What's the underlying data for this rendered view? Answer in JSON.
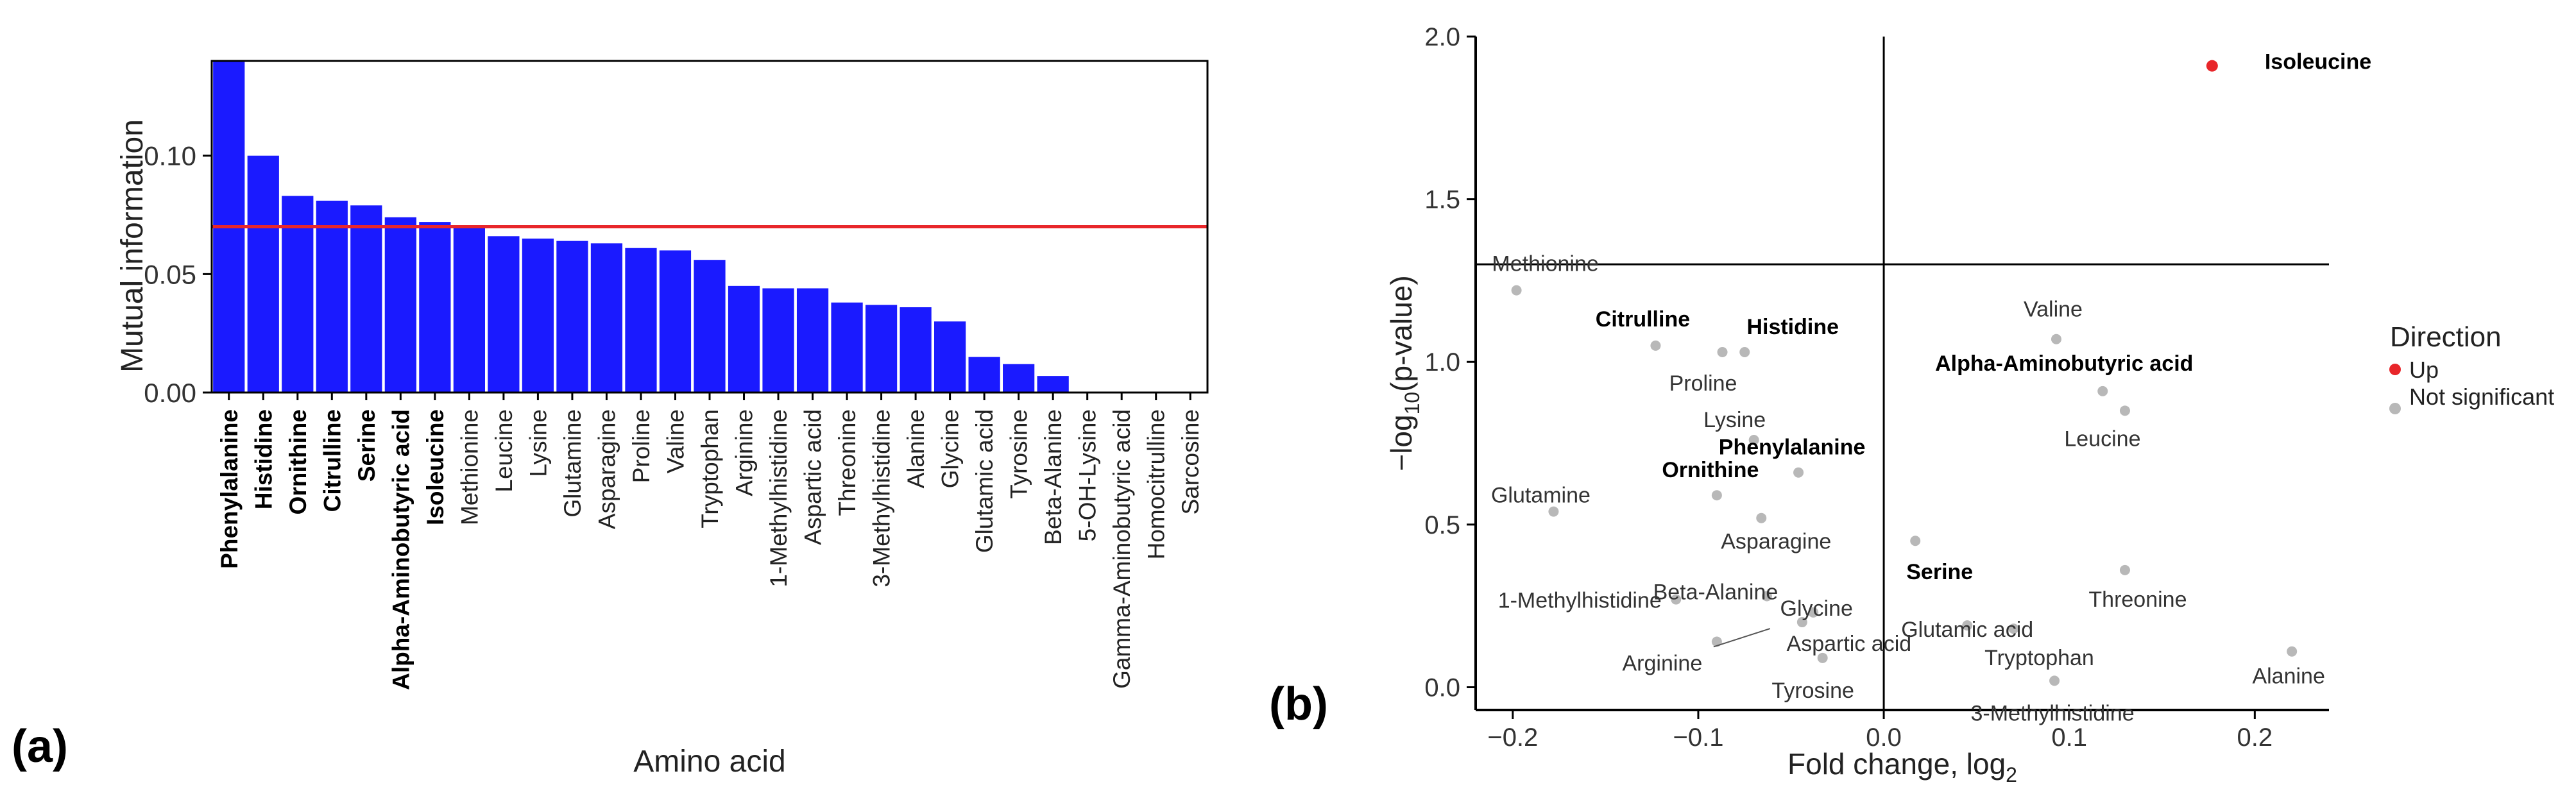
{
  "panel_a_label": "(a)",
  "panel_b_label": "(b)",
  "chart_data": [
    {
      "type": "bar",
      "xlabel": "Amino acid",
      "ylabel": "Mutual information",
      "ylim": [
        0,
        0.14
      ],
      "yticks": [
        "0.00",
        "0.05",
        "0.10"
      ],
      "threshold": 0.07,
      "threshold_color": "#e8262a",
      "bar_color": "#1a1aff",
      "categories": [
        "Phenylalanine",
        "Histidine",
        "Ornithine",
        "Citrulline",
        "Serine",
        "Alpha-Aminobutyric acid",
        "Isoleucine",
        "Methionine",
        "Leucine",
        "Lysine",
        "Glutamine",
        "Asparagine",
        "Proline",
        "Valine",
        "Tryptophan",
        "Arginine",
        "1-Methylhistidine",
        "Aspartic acid",
        "Threonine",
        "3-Methylhistidine",
        "Alanine",
        "Glycine",
        "Glutamic acid",
        "Tyrosine",
        "Beta-Alanine",
        "5-OH-Lysine",
        "Gamma-Aminobutyric acid",
        "Homocitrulline",
        "Sarcosine"
      ],
      "values": [
        0.14,
        0.1,
        0.083,
        0.081,
        0.079,
        0.074,
        0.072,
        0.07,
        0.066,
        0.065,
        0.064,
        0.063,
        0.061,
        0.06,
        0.056,
        0.045,
        0.044,
        0.044,
        0.038,
        0.037,
        0.036,
        0.03,
        0.015,
        0.012,
        0.007,
        0.0,
        0.0,
        0.0,
        0.0
      ],
      "bold": [
        true,
        true,
        true,
        true,
        true,
        true,
        true,
        false,
        false,
        false,
        false,
        false,
        false,
        false,
        false,
        false,
        false,
        false,
        false,
        false,
        false,
        false,
        false,
        false,
        false,
        false,
        false,
        false,
        false
      ]
    },
    {
      "type": "scatter",
      "xlabel": "Fold change, log",
      "xlabel_sub": "2",
      "ylabel_prefix": "−log",
      "ylabel_sub": "10",
      "ylabel_suffix": "(p-value)",
      "xlim": [
        -0.22,
        0.24
      ],
      "ylim": [
        -0.07,
        2.0
      ],
      "xticks": [
        "−0.2",
        "−0.1",
        "0.0",
        "0.1",
        "0.2"
      ],
      "yticks": [
        "0.0",
        "0.5",
        "1.0",
        "1.5",
        "2.0"
      ],
      "hline": 1.3,
      "vline": 0.0,
      "legend": {
        "title": "Direction",
        "entries": [
          {
            "label": "Up",
            "color": "#e8262a"
          },
          {
            "label": "Not significant",
            "color": "#b8b8b8"
          }
        ]
      },
      "points": [
        {
          "label": "Isoleucine",
          "x": 0.177,
          "y": 1.91,
          "dir": "up",
          "bold": true
        },
        {
          "label": "Methionine",
          "x": -0.198,
          "y": 1.22,
          "dir": "ns",
          "bold": false
        },
        {
          "label": "Citrulline",
          "x": -0.123,
          "y": 1.05,
          "dir": "ns",
          "bold": true
        },
        {
          "label": "Histidine",
          "x": -0.075,
          "y": 1.03,
          "dir": "ns",
          "bold": true
        },
        {
          "label": "Proline",
          "x": -0.087,
          "y": 1.03,
          "dir": "ns",
          "bold": false
        },
        {
          "label": "Valine",
          "x": 0.093,
          "y": 1.07,
          "dir": "ns",
          "bold": false
        },
        {
          "label": "Alpha-Aminobutyric acid",
          "x": 0.118,
          "y": 0.91,
          "dir": "ns",
          "bold": true
        },
        {
          "label": "Leucine",
          "x": 0.13,
          "y": 0.85,
          "dir": "ns",
          "bold": false
        },
        {
          "label": "Lysine",
          "x": -0.07,
          "y": 0.76,
          "dir": "ns",
          "bold": false
        },
        {
          "label": "Ornithine",
          "x": -0.09,
          "y": 0.59,
          "dir": "ns",
          "bold": true
        },
        {
          "label": "Phenylalanine",
          "x": -0.046,
          "y": 0.66,
          "dir": "ns",
          "bold": true
        },
        {
          "label": "Glutamine",
          "x": -0.178,
          "y": 0.54,
          "dir": "ns",
          "bold": false
        },
        {
          "label": "Asparagine",
          "x": -0.066,
          "y": 0.52,
          "dir": "ns",
          "bold": false
        },
        {
          "label": "Serine",
          "x": 0.017,
          "y": 0.45,
          "dir": "ns",
          "bold": true
        },
        {
          "label": "Threonine",
          "x": 0.13,
          "y": 0.36,
          "dir": "ns",
          "bold": false
        },
        {
          "label": "Beta-Alanine",
          "x": -0.063,
          "y": 0.28,
          "dir": "ns",
          "bold": false
        },
        {
          "label": "Glycine",
          "x": -0.038,
          "y": 0.23,
          "dir": "ns",
          "bold": false
        },
        {
          "label": "Glutamic acid",
          "x": 0.045,
          "y": 0.19,
          "dir": "ns",
          "bold": false
        },
        {
          "label": "Tryptophan",
          "x": 0.07,
          "y": 0.18,
          "dir": "ns",
          "bold": false
        },
        {
          "label": "1-Methylhistidine",
          "x": -0.112,
          "y": 0.27,
          "dir": "ns",
          "bold": false
        },
        {
          "label": "Aspartic acid",
          "x": -0.044,
          "y": 0.2,
          "dir": "ns",
          "bold": false
        },
        {
          "label": "Arginine",
          "x": -0.09,
          "y": 0.14,
          "dir": "ns",
          "bold": false
        },
        {
          "label": "Tyrosine",
          "x": -0.033,
          "y": 0.09,
          "dir": "ns",
          "bold": false
        },
        {
          "label": "Alanine",
          "x": 0.22,
          "y": 0.11,
          "dir": "ns",
          "bold": false
        },
        {
          "label": "3-Methylhistidine",
          "x": 0.092,
          "y": 0.02,
          "dir": "ns",
          "bold": false
        }
      ]
    }
  ]
}
